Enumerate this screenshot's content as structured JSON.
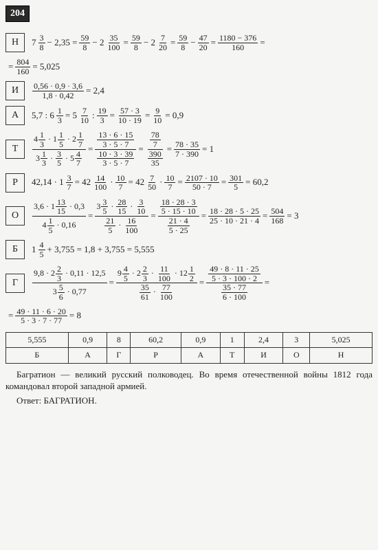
{
  "problem_number": "204",
  "rows": [
    {
      "letter": "Н"
    },
    {
      "letter": "И"
    },
    {
      "letter": "А"
    },
    {
      "letter": "Т"
    },
    {
      "letter": "Р"
    },
    {
      "letter": "О"
    },
    {
      "letter": "Б"
    },
    {
      "letter": "Г"
    }
  ],
  "table": {
    "values": [
      "5,555",
      "0,9",
      "8",
      "60,2",
      "0,9",
      "1",
      "2,4",
      "3",
      "5,025"
    ],
    "letters": [
      "Б",
      "А",
      "Г",
      "Р",
      "А",
      "Т",
      "И",
      "О",
      "Н"
    ]
  },
  "footer": "Багратион — великий русский полководец. Во время отечественной войны 1812 года командовал второй западной армией.",
  "answer_label": "Ответ:",
  "answer": "БАГРАТИОН."
}
